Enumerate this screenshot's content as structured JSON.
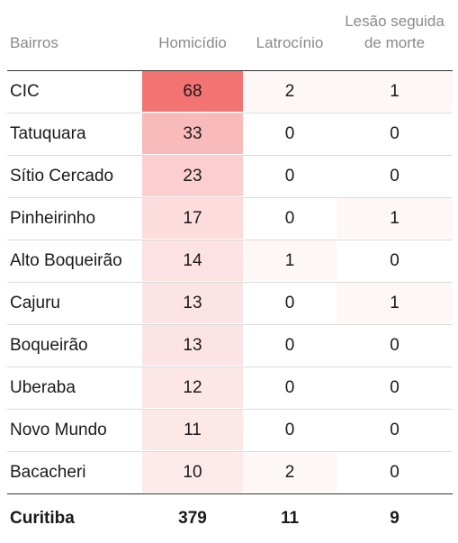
{
  "columns": {
    "bairros": "Bairros",
    "homicidio": "Homicídio",
    "latrocinio": "Latrocínio",
    "lesao_line1": "Lesão seguida",
    "lesao_line2": "de morte"
  },
  "heat_color": "#f26a6a",
  "heat_max": 68,
  "rows": [
    {
      "bairro": "CIC",
      "homicidio": "68",
      "latrocinio": "2",
      "lesao": "1"
    },
    {
      "bairro": "Tatuquara",
      "homicidio": "33",
      "latrocinio": "0",
      "lesao": "0"
    },
    {
      "bairro": "Sítio Cercado",
      "homicidio": "23",
      "latrocinio": "0",
      "lesao": "0"
    },
    {
      "bairro": "Pinheirinho",
      "homicidio": "17",
      "latrocinio": "0",
      "lesao": "1"
    },
    {
      "bairro": "Alto Boqueirão",
      "homicidio": "14",
      "latrocinio": "1",
      "lesao": "0"
    },
    {
      "bairro": "Cajuru",
      "homicidio": "13",
      "latrocinio": "0",
      "lesao": "1"
    },
    {
      "bairro": "Boqueirão",
      "homicidio": "13",
      "latrocinio": "0",
      "lesao": "0"
    },
    {
      "bairro": "Uberaba",
      "homicidio": "12",
      "latrocinio": "0",
      "lesao": "0"
    },
    {
      "bairro": "Novo Mundo",
      "homicidio": "11",
      "latrocinio": "0",
      "lesao": "0"
    },
    {
      "bairro": "Bacacheri",
      "homicidio": "10",
      "latrocinio": "2",
      "lesao": "0"
    }
  ],
  "total": {
    "bairro": "Curitiba",
    "homicidio": "379",
    "latrocinio": "11",
    "lesao": "9"
  }
}
